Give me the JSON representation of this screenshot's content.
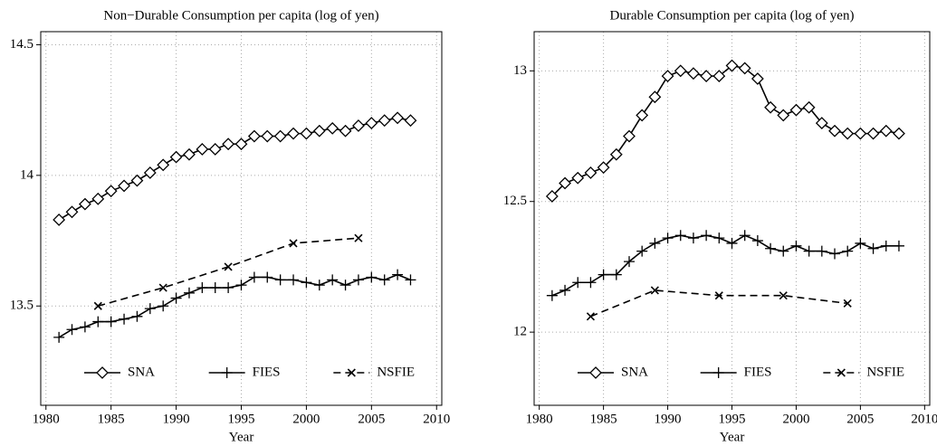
{
  "chart_data": [
    {
      "type": "line",
      "title": "Non−Durable Consumption per capita (log of yen)",
      "x_label": "Year",
      "xlim": [
        1979.6,
        2010.4
      ],
      "xticks": [
        1980,
        1985,
        1990,
        1995,
        2000,
        2005,
        2010
      ],
      "ylim": [
        13.12,
        14.55
      ],
      "yticks": [
        13.5,
        14,
        14.5
      ],
      "grid": true,
      "legend": "bottom",
      "series": [
        {
          "name": "SNA",
          "color": "#000000",
          "marker": "diamond",
          "dash": false,
          "x": [
            1981,
            1982,
            1983,
            1984,
            1985,
            1986,
            1987,
            1988,
            1989,
            1990,
            1991,
            1992,
            1993,
            1994,
            1995,
            1996,
            1997,
            1998,
            1999,
            2000,
            2001,
            2002,
            2003,
            2004,
            2005,
            2006,
            2007,
            2008
          ],
          "values": [
            13.83,
            13.86,
            13.89,
            13.91,
            13.94,
            13.96,
            13.98,
            14.01,
            14.04,
            14.07,
            14.08,
            14.1,
            14.1,
            14.12,
            14.12,
            14.15,
            14.15,
            14.15,
            14.16,
            14.16,
            14.17,
            14.18,
            14.17,
            14.19,
            14.2,
            14.21,
            14.22,
            14.21
          ]
        },
        {
          "name": "FIES",
          "color": "#000000",
          "marker": "plus",
          "dash": false,
          "x": [
            1981,
            1982,
            1983,
            1984,
            1985,
            1986,
            1987,
            1988,
            1989,
            1990,
            1991,
            1992,
            1993,
            1994,
            1995,
            1996,
            1997,
            1998,
            1999,
            2000,
            2001,
            2002,
            2003,
            2004,
            2005,
            2006,
            2007,
            2008
          ],
          "values": [
            13.38,
            13.41,
            13.42,
            13.44,
            13.44,
            13.45,
            13.46,
            13.49,
            13.5,
            13.53,
            13.55,
            13.57,
            13.57,
            13.57,
            13.58,
            13.61,
            13.61,
            13.6,
            13.6,
            13.59,
            13.58,
            13.6,
            13.58,
            13.6,
            13.61,
            13.6,
            13.62,
            13.6
          ]
        },
        {
          "name": "NSFIE",
          "color": "#000000",
          "marker": "cross",
          "dash": true,
          "x": [
            1984,
            1989,
            1994,
            1999,
            2004
          ],
          "values": [
            13.5,
            13.57,
            13.65,
            13.74,
            13.76
          ]
        }
      ]
    },
    {
      "type": "line",
      "title": "Durable Consumption per capita (log of yen)",
      "x_label": "Year",
      "xlim": [
        1979.6,
        2010.4
      ],
      "xticks": [
        1980,
        1985,
        1990,
        1995,
        2000,
        2005,
        2010
      ],
      "ylim": [
        11.72,
        13.15
      ],
      "yticks": [
        12,
        12.5,
        13
      ],
      "grid": true,
      "legend": "bottom",
      "series": [
        {
          "name": "SNA",
          "color": "#000000",
          "marker": "diamond",
          "dash": false,
          "x": [
            1981,
            1982,
            1983,
            1984,
            1985,
            1986,
            1987,
            1988,
            1989,
            1990,
            1991,
            1992,
            1993,
            1994,
            1995,
            1996,
            1997,
            1998,
            1999,
            2000,
            2001,
            2002,
            2003,
            2004,
            2005,
            2006,
            2007,
            2008
          ],
          "values": [
            12.52,
            12.57,
            12.59,
            12.61,
            12.63,
            12.68,
            12.75,
            12.83,
            12.9,
            12.98,
            13.0,
            12.99,
            12.98,
            12.98,
            13.02,
            13.01,
            12.97,
            12.86,
            12.83,
            12.85,
            12.86,
            12.8,
            12.77,
            12.76,
            12.76,
            12.76,
            12.77,
            12.76
          ]
        },
        {
          "name": "FIES",
          "color": "#000000",
          "marker": "plus",
          "dash": false,
          "x": [
            1981,
            1982,
            1983,
            1984,
            1985,
            1986,
            1987,
            1988,
            1989,
            1990,
            1991,
            1992,
            1993,
            1994,
            1995,
            1996,
            1997,
            1998,
            1999,
            2000,
            2001,
            2002,
            2003,
            2004,
            2005,
            2006,
            2007,
            2008
          ],
          "values": [
            12.14,
            12.16,
            12.19,
            12.19,
            12.22,
            12.22,
            12.27,
            12.31,
            12.34,
            12.36,
            12.37,
            12.36,
            12.37,
            12.36,
            12.34,
            12.37,
            12.35,
            12.32,
            12.31,
            12.33,
            12.31,
            12.31,
            12.3,
            12.31,
            12.34,
            12.32,
            12.33,
            12.33
          ]
        },
        {
          "name": "NSFIE",
          "color": "#000000",
          "marker": "cross",
          "dash": true,
          "x": [
            1984,
            1989,
            1994,
            1999,
            2004
          ],
          "values": [
            12.06,
            12.16,
            12.14,
            12.14,
            12.11
          ]
        }
      ]
    }
  ]
}
